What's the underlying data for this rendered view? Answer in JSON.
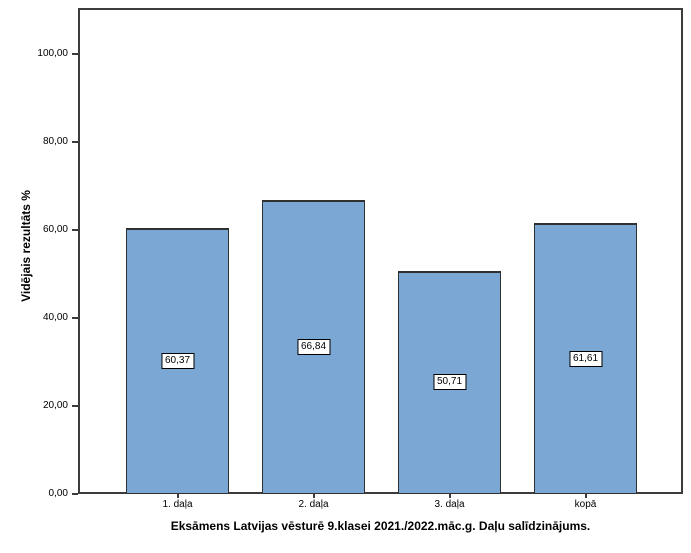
{
  "figure": {
    "background": "#ffffff"
  },
  "chart_data": {
    "type": "bar",
    "title": "Eksāmens Latvijas vēsturē 9.klasei 2021./2022.māc.g. Daļu salīdzinājums.",
    "xlabel": "",
    "ylabel": "Vidējais rezultāts %",
    "categories": [
      "1. daļa",
      "2. daļa",
      "3. daļa",
      "kopā"
    ],
    "values": [
      60.37,
      66.84,
      50.71,
      61.61
    ],
    "value_labels": [
      "60,37",
      "66,84",
      "50,71",
      "61,61"
    ],
    "ylim": [
      0,
      110.5
    ],
    "yticks": [
      0,
      20,
      40,
      60,
      80,
      100
    ],
    "ytick_labels": [
      "0,00",
      "20,00",
      "40,00",
      "60,00",
      "80,00",
      "100,00"
    ],
    "grid": false,
    "legend": "none",
    "bar_color": "#7aa7d3",
    "bar_border_color": "#303030",
    "frame_color": "#3c3c3c"
  }
}
